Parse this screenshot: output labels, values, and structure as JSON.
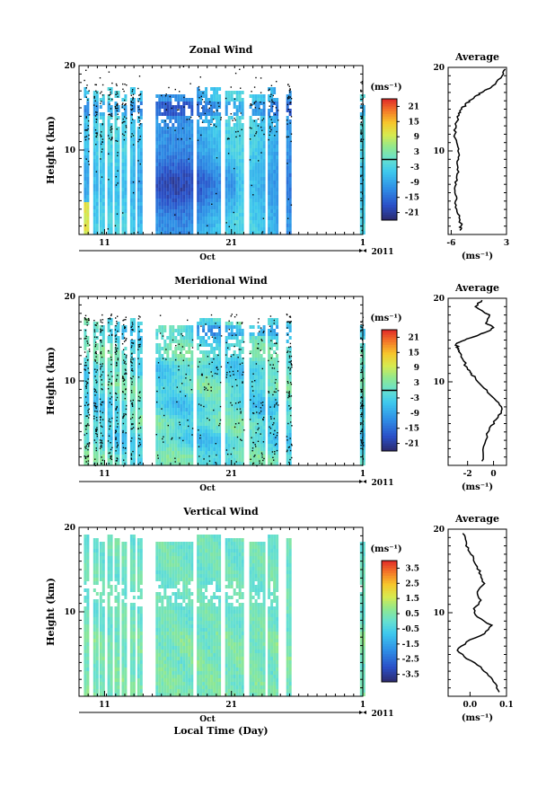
{
  "chart_data": [
    {
      "type": "heatmap",
      "title": "Zonal Wind",
      "ylabel": "Height (km)",
      "ylim": [
        0,
        20
      ],
      "yticks": [
        "20",
        "10"
      ],
      "xticks": [
        "11",
        "21",
        "1"
      ],
      "month_label": "Oct",
      "year_label": "2011",
      "colorbar": {
        "unit": "(ms⁻¹)",
        "ticks": [
          "21",
          "15",
          "9",
          "3",
          "-3",
          "-9",
          "-15",
          "-21"
        ],
        "range": [
          -24,
          24
        ],
        "zero_line": true
      }
    },
    {
      "type": "line",
      "title": "Average",
      "ylim": [
        0,
        20
      ],
      "yticks": [
        "20",
        "10"
      ],
      "xlim": [
        -6.5,
        3
      ],
      "xticks": [
        "-6",
        "3"
      ],
      "xlabel": "(ms⁻¹)",
      "x": [
        -4.6,
        -4.4,
        -4.7,
        -5.1,
        -5.3,
        -5.4,
        -5.2,
        -5.1,
        -4.9,
        -4.8,
        -4.9,
        -5.1,
        -5.4,
        -5.2,
        -5.0,
        -4.8,
        -4.3,
        -3.7,
        -3.1,
        -2.2,
        -1.0,
        0.3,
        1.2,
        2.3,
        2.8
      ],
      "y": [
        0.5,
        1.0,
        2.0,
        3.0,
        4.0,
        5.0,
        6.0,
        7.0,
        8.0,
        9.0,
        10.0,
        11.0,
        12.0,
        13.0,
        14.0,
        14.5,
        15.0,
        15.5,
        16.0,
        16.5,
        17.0,
        17.5,
        18.0,
        19.0,
        19.8
      ]
    },
    {
      "type": "heatmap",
      "title": "Meridional Wind",
      "ylabel": "Height (km)",
      "ylim": [
        0,
        20
      ],
      "yticks": [
        "20",
        "10"
      ],
      "xticks": [
        "11",
        "21",
        "1"
      ],
      "month_label": "Oct",
      "year_label": "2011",
      "colorbar": {
        "unit": "(ms⁻¹)",
        "ticks": [
          "21",
          "15",
          "9",
          "3",
          "-3",
          "-9",
          "-15",
          "-21"
        ],
        "range": [
          -24,
          24
        ],
        "zero_line": true
      }
    },
    {
      "type": "line",
      "title": "Average",
      "ylim": [
        0,
        20
      ],
      "yticks": [
        "20",
        "10"
      ],
      "xlim": [
        -3.5,
        1
      ],
      "xticks": [
        "-2",
        "0"
      ],
      "xlabel": "(ms⁻¹)",
      "x": [
        -0.9,
        -0.8,
        -0.6,
        -0.3,
        0.2,
        0.6,
        0.4,
        -0.3,
        -0.9,
        -1.4,
        -1.7,
        -2.0,
        -2.3,
        -2.6,
        -2.7,
        -2.9,
        -2.2,
        -1.3,
        -0.5,
        0.0,
        -0.6,
        -0.3,
        -1.4,
        -0.9
      ],
      "y": [
        0.5,
        1.5,
        3.0,
        4.5,
        5.5,
        6.5,
        7.5,
        8.5,
        9.5,
        10.5,
        11.0,
        11.5,
        12.5,
        13.5,
        14.0,
        14.5,
        15.0,
        15.5,
        16.0,
        16.5,
        17.0,
        18.0,
        19.0,
        19.8
      ]
    },
    {
      "type": "heatmap",
      "title": "Vertical Wind",
      "ylabel": "Height (km)",
      "ylim": [
        0,
        20
      ],
      "yticks": [
        "20",
        "10"
      ],
      "xticks": [
        "11",
        "21",
        "1"
      ],
      "month_label": "Oct",
      "year_label": "2011",
      "xlabel": "Local Time (Day)",
      "colorbar": {
        "unit": "(ms⁻¹)",
        "ticks": [
          "3.5",
          "2.5",
          "1.5",
          "0.5",
          "-0.5",
          "-1.5",
          "-2.5",
          "-3.5"
        ],
        "range": [
          -4,
          4
        ],
        "zero_line": false
      }
    },
    {
      "type": "line",
      "title": "Average",
      "ylim": [
        0,
        20
      ],
      "yticks": [
        "20",
        "10"
      ],
      "xlim": [
        -0.06,
        0.1
      ],
      "xticks": [
        "0.0",
        "0.1"
      ],
      "xlabel": "(ms⁻¹)",
      "x": [
        0.08,
        0.07,
        0.05,
        0.03,
        -0.01,
        -0.035,
        -0.01,
        0.04,
        0.06,
        0.02,
        0.01,
        0.03,
        0.02,
        0.04,
        0.03,
        0.02,
        0.01,
        -0.005,
        -0.01,
        -0.02
      ],
      "y": [
        0.5,
        1.5,
        2.5,
        3.5,
        4.5,
        5.5,
        6.5,
        7.5,
        8.5,
        9.5,
        10.5,
        11.5,
        12.5,
        13.5,
        14.5,
        15.5,
        16.5,
        17.5,
        18.5,
        19.5
      ]
    }
  ]
}
